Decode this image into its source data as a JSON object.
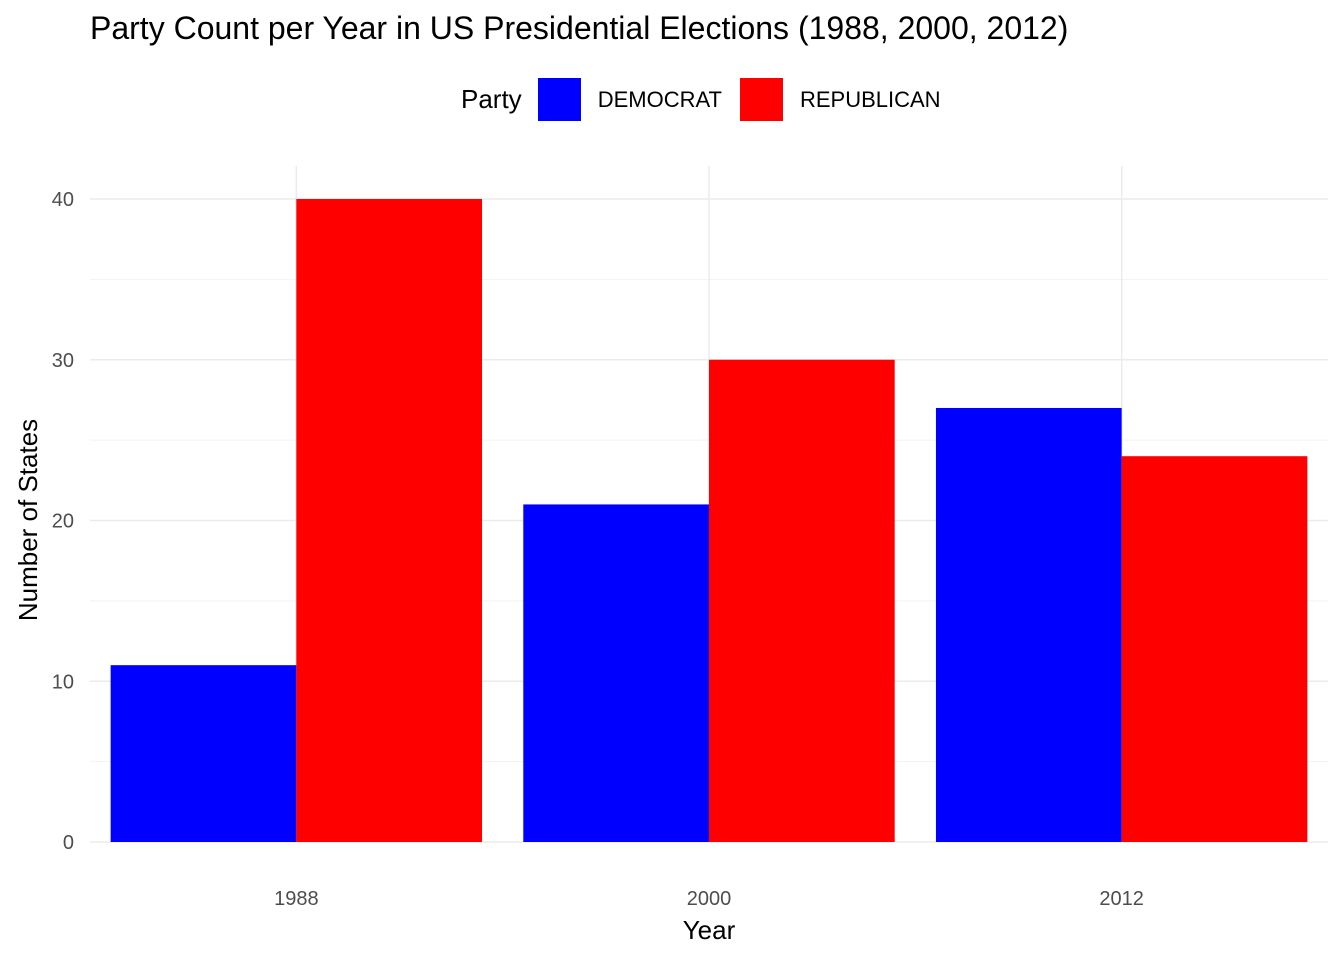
{
  "chart_data": {
    "type": "bar",
    "title": "Party Count per Year in US Presidential Elections (1988, 2000, 2012)",
    "xlabel": "Year",
    "ylabel": "Number of States",
    "categories": [
      "1988",
      "2000",
      "2012"
    ],
    "series": [
      {
        "name": "DEMOCRAT",
        "color": "#0000ff",
        "values": [
          11,
          21,
          27
        ]
      },
      {
        "name": "REPUBLICAN",
        "color": "#ff0000",
        "values": [
          40,
          30,
          24
        ]
      }
    ],
    "ylim": [
      0,
      42
    ],
    "yticks": [
      "0",
      "10",
      "20",
      "30",
      "40"
    ],
    "grid": true,
    "legend": {
      "title": "Party",
      "position": "top"
    }
  }
}
